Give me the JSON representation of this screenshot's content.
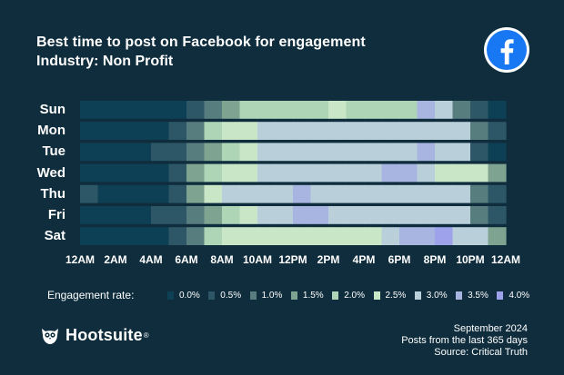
{
  "chart_data": {
    "type": "heatmap",
    "title": "Best time to post on Facebook for engagement",
    "subtitle": "Industry: Non Profit",
    "days": [
      "Sun",
      "Mon",
      "Tue",
      "Wed",
      "Thu",
      "Fri",
      "Sat"
    ],
    "x_ticks": [
      "12AM",
      "2AM",
      "4AM",
      "6AM",
      "8AM",
      "10AM",
      "12PM",
      "2PM",
      "4PM",
      "6PM",
      "8PM",
      "10PM",
      "12AM"
    ],
    "hours": [
      0,
      1,
      2,
      3,
      4,
      5,
      6,
      7,
      8,
      9,
      10,
      11,
      12,
      13,
      14,
      15,
      16,
      17,
      18,
      19,
      20,
      21,
      22,
      23
    ],
    "values": [
      [
        0.0,
        0.0,
        0.0,
        0.0,
        0.0,
        0.0,
        0.5,
        1.0,
        1.5,
        2.0,
        2.0,
        2.0,
        2.0,
        2.0,
        2.5,
        2.0,
        2.0,
        2.0,
        2.0,
        3.5,
        3.0,
        1.0,
        0.5,
        0.0
      ],
      [
        0.0,
        0.0,
        0.0,
        0.0,
        0.0,
        0.5,
        1.0,
        2.0,
        2.5,
        2.5,
        3.0,
        3.0,
        3.0,
        3.0,
        3.0,
        3.0,
        3.0,
        3.0,
        3.0,
        3.0,
        3.0,
        3.0,
        1.0,
        0.5
      ],
      [
        0.0,
        0.0,
        0.0,
        0.0,
        0.5,
        0.5,
        1.0,
        1.5,
        2.0,
        2.5,
        3.0,
        3.0,
        3.0,
        3.0,
        3.0,
        3.0,
        3.0,
        3.0,
        3.0,
        3.5,
        3.0,
        3.0,
        0.5,
        0.0
      ],
      [
        0.0,
        0.0,
        0.0,
        0.0,
        0.0,
        0.5,
        1.5,
        2.0,
        2.5,
        2.5,
        3.0,
        3.0,
        3.0,
        3.0,
        3.0,
        3.0,
        3.0,
        3.5,
        3.5,
        3.0,
        2.5,
        2.5,
        2.5,
        1.5
      ],
      [
        0.5,
        0.0,
        0.0,
        0.0,
        0.0,
        0.5,
        1.5,
        2.5,
        3.0,
        3.0,
        3.0,
        3.0,
        3.5,
        3.0,
        3.0,
        3.0,
        3.0,
        3.0,
        3.0,
        3.0,
        3.0,
        3.0,
        1.0,
        0.5
      ],
      [
        0.0,
        0.0,
        0.0,
        0.0,
        0.5,
        0.5,
        1.0,
        1.5,
        2.0,
        2.5,
        3.0,
        3.0,
        3.5,
        3.5,
        3.0,
        3.0,
        3.0,
        3.0,
        3.0,
        3.0,
        3.0,
        3.0,
        1.0,
        0.5
      ],
      [
        0.0,
        0.0,
        0.0,
        0.0,
        0.0,
        0.5,
        1.0,
        2.0,
        2.5,
        2.5,
        2.5,
        2.5,
        2.5,
        2.5,
        2.5,
        2.5,
        2.5,
        3.0,
        3.5,
        3.5,
        4.0,
        3.0,
        3.0,
        1.5
      ]
    ],
    "legend": {
      "title": "Engagement rate:",
      "levels": [
        0.0,
        0.5,
        1.0,
        1.5,
        2.0,
        2.5,
        3.0,
        3.5,
        4.0
      ],
      "labels": [
        "0.0%",
        "0.5%",
        "1.0%",
        "1.5%",
        "2.0%",
        "2.5%",
        "3.0%",
        "3.5%",
        "4.0%"
      ],
      "colors": [
        "#0d4054",
        "#2d5766",
        "#577d7e",
        "#7fa391",
        "#aed5b6",
        "#c9e7c6",
        "#b9cfd9",
        "#a9b5e1",
        "#9ea2ea"
      ]
    }
  },
  "icons": {
    "platform": "facebook-icon",
    "brand": "hootsuite-owl-icon"
  },
  "brand": {
    "name": "Hootsuite",
    "reg": "®"
  },
  "footer": {
    "date": "September 2024",
    "range": "Posts from the last 365 days",
    "source": "Source: Critical Truth"
  },
  "colors": {
    "background": "#0f2d3d",
    "facebook": "#1877f2"
  }
}
